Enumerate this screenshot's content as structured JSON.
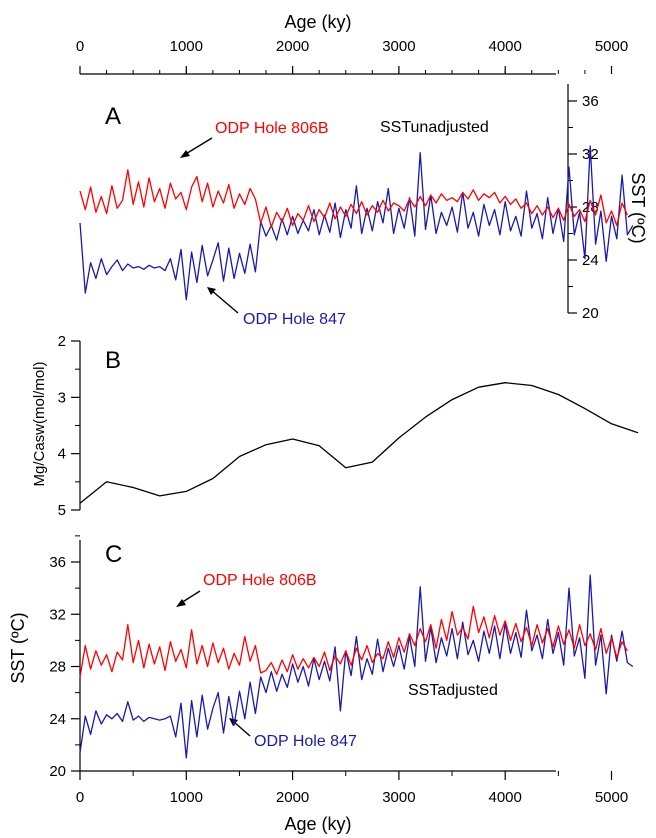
{
  "chart_data": [
    {
      "id": "A",
      "type": "line",
      "panel_label": "A",
      "top_axis_title": "Age (ky)",
      "top_axis_ticks": [
        "0",
        "1000",
        "2000",
        "3000",
        "4000",
        "5000"
      ],
      "xlim": [
        0,
        5400
      ],
      "ylabel": "SST (ºC)",
      "ylim": [
        20,
        37
      ],
      "y_ticks": [
        "20",
        "24",
        "28",
        "32",
        "36"
      ],
      "y_axis_side": "right",
      "text_label": "SSTunadjusted",
      "series": [
        {
          "name": "ODP Hole 806B",
          "color": "#ff0000",
          "x": [
            0,
            50,
            100,
            150,
            200,
            250,
            300,
            350,
            400,
            450,
            500,
            550,
            600,
            650,
            700,
            750,
            800,
            850,
            900,
            950,
            1000,
            1050,
            1100,
            1150,
            1200,
            1250,
            1300,
            1350,
            1400,
            1450,
            1500,
            1550,
            1600,
            1650,
            1700,
            1750,
            1800,
            1850,
            1900,
            1950,
            2000,
            2050,
            2100,
            2150,
            2200,
            2250,
            2300,
            2350,
            2400,
            2450,
            2500,
            2550,
            2600,
            2650,
            2700,
            2750,
            2800,
            2850,
            2900,
            2950,
            3000,
            3050,
            3100,
            3150,
            3200,
            3250,
            3300,
            3350,
            3400,
            3450,
            3500,
            3550,
            3600,
            3650,
            3700,
            3750,
            3800,
            3850,
            3900,
            3950,
            4000,
            4050,
            4100,
            4150,
            4200,
            4250,
            4300,
            4350,
            4400,
            4450,
            4500,
            4550,
            4600,
            4650,
            4700,
            4750,
            4800,
            4850,
            4900,
            4950,
            5000,
            5050,
            5100,
            5150
          ],
          "y": [
            29.2,
            27.8,
            29.5,
            27.6,
            28.8,
            27.5,
            29.6,
            27.9,
            28.5,
            30.8,
            28.2,
            29.9,
            28.0,
            30.2,
            28.4,
            29.4,
            27.9,
            29.8,
            28.6,
            29.1,
            27.8,
            29.5,
            30.3,
            28.4,
            29.8,
            28.0,
            29.2,
            28.3,
            29.7,
            27.9,
            29.0,
            28.2,
            29.4,
            28.6,
            26.8,
            28.0,
            26.5,
            27.6,
            26.9,
            27.9,
            26.6,
            27.5,
            27.0,
            28.1,
            26.9,
            27.8,
            27.2,
            28.3,
            27.1,
            28.0,
            27.3,
            28.2,
            27.5,
            28.4,
            27.4,
            28.1,
            27.6,
            28.5,
            27.7,
            28.3,
            28.1,
            27.7,
            28.6,
            28.0,
            28.8,
            28.1,
            28.9,
            28.3,
            29.0,
            28.5,
            28.7,
            28.4,
            29.1,
            28.6,
            29.3,
            28.5,
            29.0,
            28.7,
            29.1,
            28.3,
            28.8,
            28.2,
            28.6,
            27.9,
            28.3,
            27.5,
            28.1,
            27.4,
            28.0,
            27.2,
            27.9,
            27.0,
            28.2,
            27.3,
            27.8,
            26.9,
            28.5,
            27.4,
            28.9,
            26.8,
            27.7,
            26.6,
            28.3,
            27.4
          ]
        },
        {
          "name": "ODP Hole 847",
          "color": "#1a1aaa",
          "x": [
            0,
            50,
            100,
            150,
            200,
            250,
            300,
            350,
            400,
            450,
            500,
            550,
            600,
            650,
            700,
            750,
            800,
            850,
            900,
            950,
            1000,
            1050,
            1100,
            1150,
            1200,
            1250,
            1300,
            1350,
            1400,
            1450,
            1500,
            1550,
            1600,
            1650,
            1700,
            1750,
            1800,
            1850,
            1900,
            1950,
            2000,
            2050,
            2100,
            2150,
            2200,
            2250,
            2300,
            2350,
            2400,
            2450,
            2500,
            2550,
            2600,
            2650,
            2700,
            2750,
            2800,
            2850,
            2900,
            2950,
            3000,
            3050,
            3100,
            3150,
            3200,
            3250,
            3300,
            3350,
            3400,
            3450,
            3500,
            3550,
            3600,
            3650,
            3700,
            3750,
            3800,
            3850,
            3900,
            3950,
            4000,
            4050,
            4100,
            4150,
            4200,
            4250,
            4300,
            4350,
            4400,
            4450,
            4500,
            4550,
            4600,
            4650,
            4700,
            4750,
            4800,
            4850,
            4900,
            4950,
            5000,
            5050,
            5100,
            5150,
            5200
          ],
          "y": [
            26.8,
            21.5,
            23.8,
            22.6,
            24.1,
            22.9,
            23.5,
            24.0,
            23.2,
            23.7,
            23.4,
            23.5,
            23.3,
            23.6,
            23.4,
            23.5,
            23.2,
            24.1,
            22.5,
            24.8,
            21.0,
            24.6,
            22.3,
            25.1,
            22.8,
            24.0,
            25.3,
            22.4,
            24.9,
            22.6,
            24.5,
            23.0,
            25.2,
            23.1,
            26.9,
            25.8,
            26.6,
            25.5,
            27.1,
            25.9,
            27.3,
            26.0,
            27.0,
            26.2,
            27.8,
            25.9,
            27.4,
            26.1,
            28.3,
            25.7,
            27.8,
            26.4,
            29.6,
            26.0,
            27.9,
            26.2,
            28.4,
            26.8,
            29.4,
            26.0,
            27.9,
            26.4,
            28.7,
            25.8,
            32.1,
            26.3,
            28.9,
            26.0,
            27.6,
            26.6,
            28.0,
            26.1,
            29.1,
            26.4,
            27.6,
            25.8,
            28.2,
            26.6,
            27.8,
            25.9,
            28.4,
            26.2,
            27.3,
            25.8,
            29.2,
            26.4,
            27.5,
            25.6,
            28.7,
            26.0,
            27.9,
            25.4,
            31.0,
            25.9,
            27.6,
            24.1,
            32.6,
            25.2,
            27.7,
            23.9,
            27.3,
            25.6,
            30.4,
            25.9,
            26.6
          ]
        }
      ],
      "annotations": [
        {
          "text": "ODP Hole 806B",
          "color": "#ff0000"
        },
        {
          "text": "ODP Hole 847",
          "color": "#1a1aaa"
        }
      ]
    },
    {
      "id": "B",
      "type": "line",
      "panel_label": "B",
      "ylabel": "Mg/Casw(mol/mol)",
      "ylim": [
        2,
        5
      ],
      "y_inverted": true,
      "y_ticks": [
        "2",
        "3",
        "4",
        "5"
      ],
      "y_axis_side": "left",
      "xlim": [
        0,
        5400
      ],
      "series": [
        {
          "color": "#000000",
          "x": [
            0,
            250,
            500,
            750,
            1000,
            1250,
            1500,
            1750,
            2000,
            2250,
            2500,
            2750,
            3000,
            3250,
            3500,
            3750,
            4000,
            4250,
            4500,
            4750,
            5000,
            5250
          ],
          "y": [
            4.88,
            4.5,
            4.6,
            4.75,
            4.67,
            4.44,
            4.05,
            3.84,
            3.74,
            3.86,
            4.25,
            4.15,
            3.72,
            3.35,
            3.04,
            2.82,
            2.74,
            2.79,
            2.95,
            3.2,
            3.47,
            3.63
          ]
        }
      ]
    },
    {
      "id": "C",
      "type": "line",
      "panel_label": "C",
      "xlabel": "Age (ky)",
      "x_ticks": [
        "0",
        "1000",
        "2000",
        "3000",
        "4000",
        "5000"
      ],
      "xlim": [
        0,
        5400
      ],
      "ylabel": "SST (ºC)",
      "ylim": [
        20,
        38
      ],
      "y_ticks": [
        "20",
        "24",
        "28",
        "32",
        "36"
      ],
      "y_axis_side": "left",
      "text_label": "SSTadjusted",
      "series": [
        {
          "name": "ODP Hole 806B",
          "color": "#ff0000",
          "x": [
            0,
            50,
            100,
            150,
            200,
            250,
            300,
            350,
            400,
            450,
            500,
            550,
            600,
            650,
            700,
            750,
            800,
            850,
            900,
            950,
            1000,
            1050,
            1100,
            1150,
            1200,
            1250,
            1300,
            1350,
            1400,
            1450,
            1500,
            1550,
            1600,
            1650,
            1700,
            1750,
            1800,
            1850,
            1900,
            1950,
            2000,
            2050,
            2100,
            2150,
            2200,
            2250,
            2300,
            2350,
            2400,
            2450,
            2500,
            2550,
            2600,
            2650,
            2700,
            2750,
            2800,
            2850,
            2900,
            2950,
            3000,
            3050,
            3100,
            3150,
            3200,
            3250,
            3300,
            3350,
            3400,
            3450,
            3500,
            3550,
            3600,
            3650,
            3700,
            3750,
            3800,
            3850,
            3900,
            3950,
            4000,
            4050,
            4100,
            4150,
            4200,
            4250,
            4300,
            4350,
            4400,
            4450,
            4500,
            4550,
            4600,
            4650,
            4700,
            4750,
            4800,
            4850,
            4900,
            4950,
            5000,
            5050,
            5100,
            5150
          ],
          "y": [
            27.2,
            29.6,
            27.8,
            29.2,
            28.1,
            28.9,
            27.6,
            29.1,
            28.5,
            31.2,
            28.3,
            30.0,
            27.9,
            29.7,
            28.2,
            29.5,
            27.7,
            29.9,
            28.4,
            29.3,
            27.9,
            30.8,
            28.2,
            29.6,
            28.0,
            29.8,
            28.3,
            29.4,
            27.8,
            29.0,
            28.1,
            30.3,
            28.4,
            29.6,
            27.5,
            27.7,
            28.3,
            27.4,
            28.5,
            27.6,
            28.9,
            27.8,
            28.6,
            27.9,
            28.7,
            28.0,
            29.1,
            27.7,
            28.8,
            28.2,
            29.2,
            28.1,
            29.4,
            28.5,
            29.6,
            28.3,
            29.0,
            28.6,
            29.9,
            28.7,
            30.2,
            29.1,
            30.5,
            29.6,
            30.9,
            29.9,
            31.2,
            29.4,
            31.6,
            30.0,
            32.2,
            30.4,
            31.0,
            30.1,
            32.6,
            30.6,
            31.8,
            30.2,
            31.9,
            30.4,
            31.5,
            30.0,
            31.3,
            29.9,
            31.0,
            29.6,
            31.2,
            29.8,
            30.9,
            29.5,
            31.1,
            29.7,
            30.8,
            29.4,
            31.2,
            29.6,
            30.5,
            29.3,
            30.9,
            29.0,
            30.2,
            28.7,
            29.9,
            29.2
          ]
        },
        {
          "name": "ODP Hole 847",
          "color": "#1a1aaa",
          "x": [
            0,
            50,
            100,
            150,
            200,
            250,
            300,
            350,
            400,
            450,
            500,
            550,
            600,
            650,
            700,
            750,
            800,
            850,
            900,
            950,
            1000,
            1050,
            1100,
            1150,
            1200,
            1250,
            1300,
            1350,
            1400,
            1450,
            1500,
            1550,
            1600,
            1650,
            1700,
            1750,
            1800,
            1850,
            1900,
            1950,
            2000,
            2050,
            2100,
            2150,
            2200,
            2250,
            2300,
            2350,
            2400,
            2450,
            2500,
            2550,
            2600,
            2650,
            2700,
            2750,
            2800,
            2850,
            2900,
            2950,
            3000,
            3050,
            3100,
            3150,
            3200,
            3250,
            3300,
            3350,
            3400,
            3450,
            3500,
            3550,
            3600,
            3650,
            3700,
            3750,
            3800,
            3850,
            3900,
            3950,
            4000,
            4050,
            4100,
            4150,
            4200,
            4250,
            4300,
            4350,
            4400,
            4450,
            4500,
            4550,
            4600,
            4650,
            4700,
            4750,
            4800,
            4850,
            4900,
            4950,
            5000,
            5050,
            5100,
            5150,
            5200
          ],
          "y": [
            21.4,
            24.2,
            22.8,
            24.6,
            23.6,
            24.3,
            24.0,
            24.4,
            23.8,
            25.3,
            23.9,
            24.2,
            23.8,
            24.1,
            24.0,
            23.9,
            24.0,
            24.2,
            22.6,
            25.2,
            21.0,
            25.4,
            22.6,
            25.8,
            23.2,
            24.8,
            26.0,
            22.9,
            25.7,
            23.5,
            26.1,
            24.0,
            26.8,
            24.4,
            27.2,
            26.0,
            27.6,
            26.1,
            27.4,
            26.4,
            28.2,
            26.8,
            28.0,
            26.5,
            28.6,
            27.0,
            28.4,
            26.9,
            29.5,
            24.6,
            29.2,
            27.3,
            30.3,
            27.0,
            28.6,
            27.4,
            30.1,
            27.6,
            29.4,
            28.0,
            29.6,
            27.8,
            30.3,
            28.0,
            34.1,
            28.4,
            31.0,
            28.3,
            30.2,
            28.8,
            30.9,
            28.6,
            31.4,
            28.9,
            30.0,
            28.4,
            30.7,
            29.0,
            31.1,
            28.6,
            31.3,
            29.0,
            30.6,
            28.7,
            32.3,
            29.2,
            30.4,
            28.6,
            31.6,
            29.0,
            30.6,
            28.1,
            34.0,
            28.8,
            30.2,
            27.1,
            35.0,
            28.1,
            30.4,
            25.9,
            30.4,
            28.4,
            30.7,
            28.3,
            28.0
          ]
        }
      ],
      "annotations": [
        {
          "text": "ODP Hole 806B",
          "color": "#ff0000"
        },
        {
          "text": "ODP Hole 847",
          "color": "#1a1aaa"
        }
      ]
    }
  ]
}
